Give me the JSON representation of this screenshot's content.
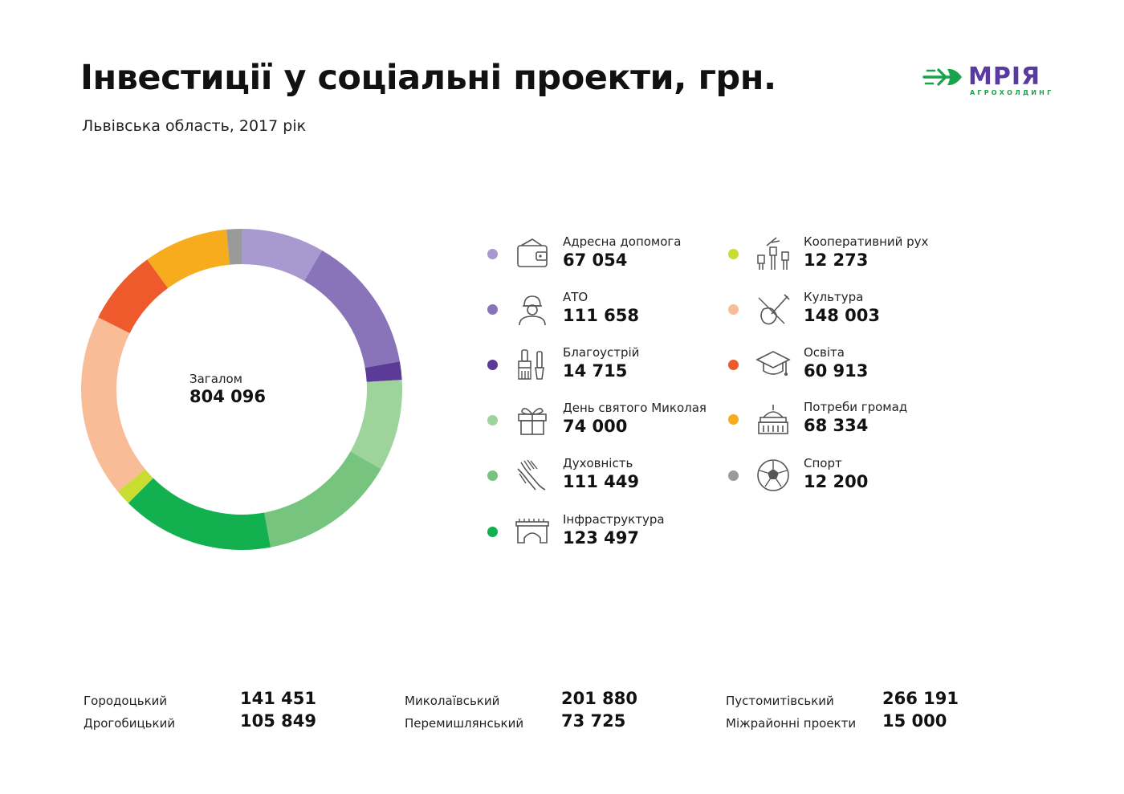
{
  "header": {
    "title": "Інвестиції у соціальні проекти, грн.",
    "subtitle": "Львівська область, 2017 рік"
  },
  "logo": {
    "name": "МРІЯ",
    "tagline": "АГРОХОЛДИНГ",
    "colors": {
      "name": "#5a3a9e",
      "mark": "#19a34b"
    }
  },
  "chart_data": {
    "type": "pie",
    "style": "donut",
    "title": "Інвестиції у соціальні проекти, грн.",
    "subtitle": "Львівська область, 2017 рік",
    "center_label": "Загалом",
    "center_value": "804 096",
    "total": 804096,
    "slices": [
      {
        "label": "Адресна допомога",
        "value": 67054,
        "display": "67 054",
        "color": "#a899d0",
        "icon": "wallet-icon"
      },
      {
        "label": "АТО",
        "value": 111658,
        "display": "111 658",
        "color": "#8a74b9",
        "icon": "soldier-icon"
      },
      {
        "label": "Благоустрій",
        "value": 14715,
        "display": "14 715",
        "color": "#5c3a98",
        "icon": "paint-brush-icon"
      },
      {
        "label": "День святого Миколая",
        "value": 74000,
        "display": "74 000",
        "color": "#9fd39c",
        "icon": "gift-icon"
      },
      {
        "label": "Духовність",
        "value": 111449,
        "display": "111 449",
        "color": "#77c47f",
        "icon": "praying-hands-icon"
      },
      {
        "label": "Інфраструктура",
        "value": 123497,
        "display": "123 497",
        "color": "#12b04e",
        "icon": "bridge-icon"
      },
      {
        "label": "Кооперативний рух",
        "value": 12273,
        "display": "12 273",
        "color": "#c9dc32",
        "icon": "raised-fists-icon"
      },
      {
        "label": "Культура",
        "value": 148003,
        "display": "148 003",
        "color": "#f8bc96",
        "icon": "violin-icon"
      },
      {
        "label": "Освіта",
        "value": 60913,
        "display": "60 913",
        "color": "#ee5a2b",
        "icon": "graduation-cap-icon"
      },
      {
        "label": "Потреби громад",
        "value": 68334,
        "display": "68 334",
        "color": "#f7ac1e",
        "icon": "town-hall-icon"
      },
      {
        "label": "Спорт",
        "value": 12200,
        "display": "12 200",
        "color": "#9a9a9a",
        "icon": "soccer-ball-icon"
      }
    ]
  },
  "districts": [
    {
      "name": "Городоцький",
      "value": "141 451"
    },
    {
      "name": "Дрогобицький",
      "value": "105 849"
    },
    {
      "name": "Миколаївський",
      "value": "201 880"
    },
    {
      "name": "Перемишлянський",
      "value": "73 725"
    },
    {
      "name": "Пустомитівський",
      "value": "266 191"
    },
    {
      "name": "Міжрайонні проекти",
      "value": "15 000"
    }
  ]
}
